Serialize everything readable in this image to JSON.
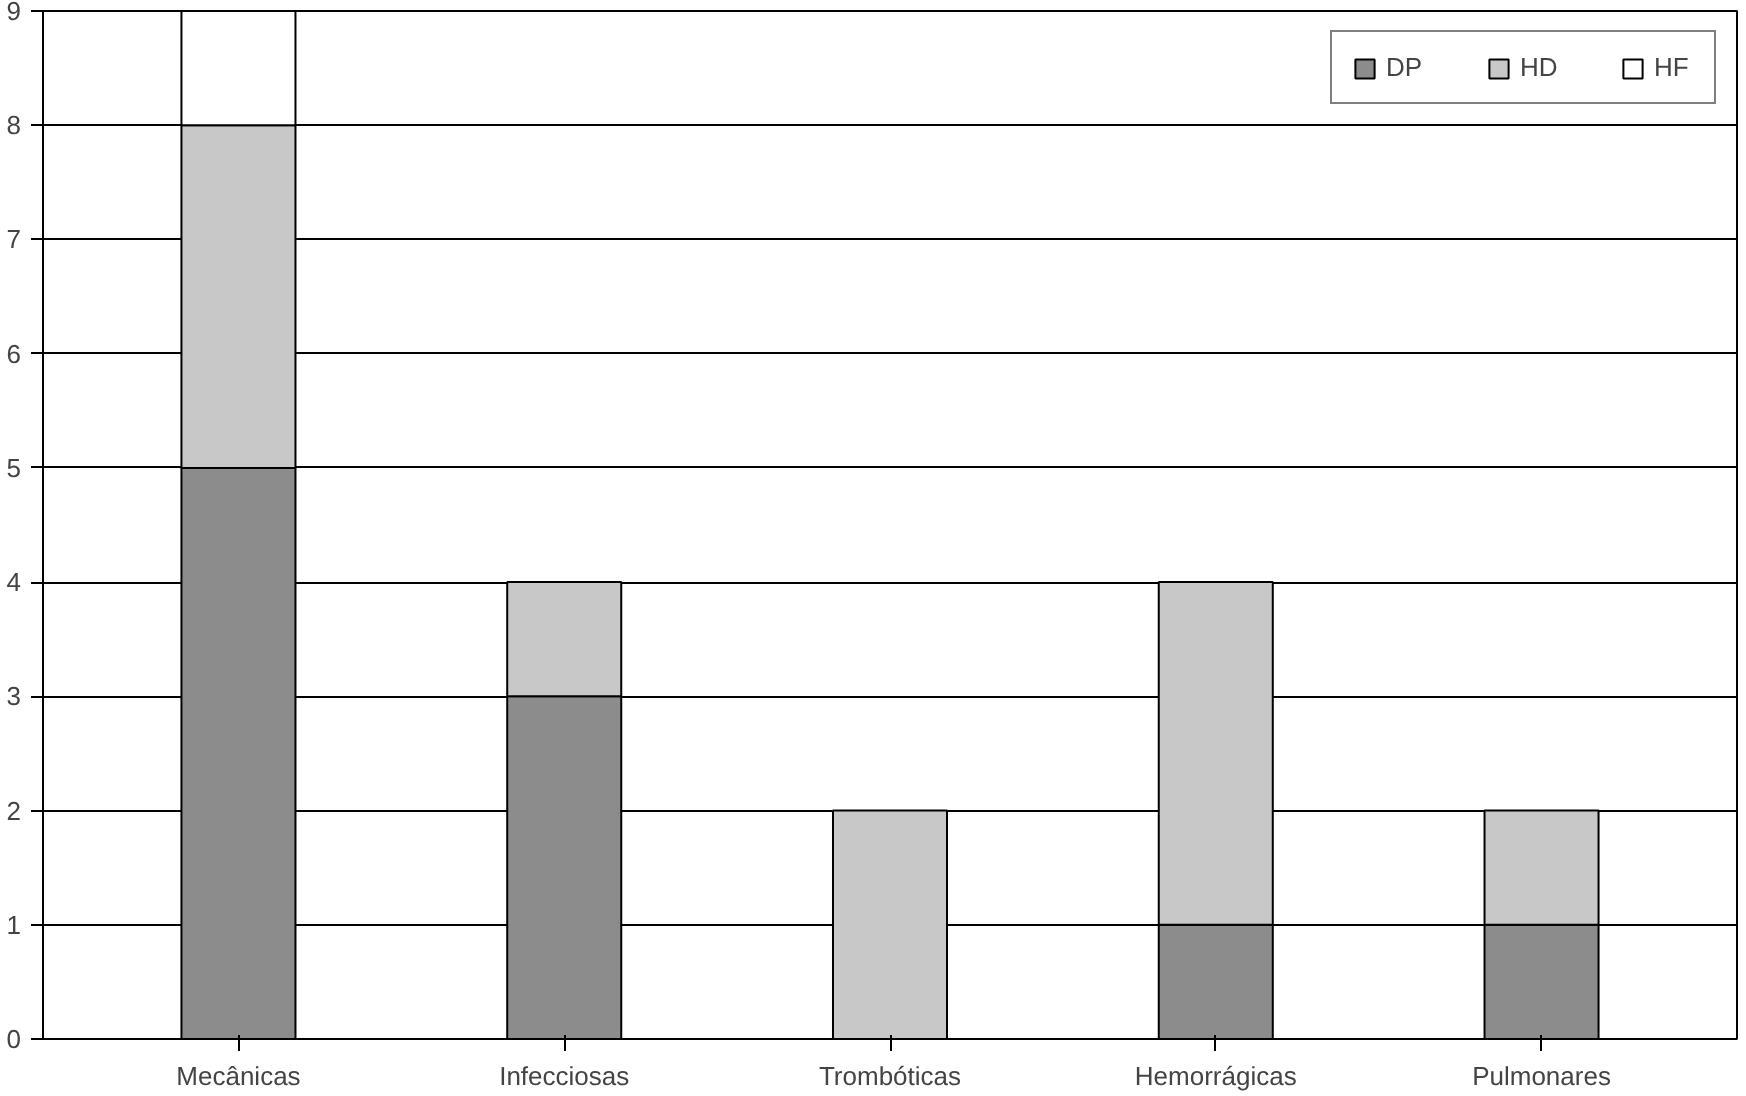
{
  "chart_data": {
    "type": "bar",
    "stacked": true,
    "categories": [
      "Mecânicas",
      "Infecciosas",
      "Trombóticas",
      "Hemorrágicas",
      "Pulmonares"
    ],
    "series": [
      {
        "name": "DP",
        "color": "#8c8c8c",
        "values": [
          5,
          3,
          0,
          1,
          1
        ]
      },
      {
        "name": "HD",
        "color": "#c8c8c8",
        "values": [
          3,
          1,
          2,
          3,
          1
        ]
      },
      {
        "name": "HF",
        "color": "#ffffff",
        "values": [
          1,
          0,
          0,
          0,
          0
        ]
      }
    ],
    "ylim": [
      0,
      9
    ],
    "yticks": [
      0,
      1,
      2,
      3,
      4,
      5,
      6,
      7,
      8,
      9
    ],
    "grid": "y",
    "legend": "top right"
  }
}
